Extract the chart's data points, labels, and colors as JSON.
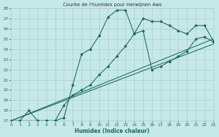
{
  "title": "Courbe de l'humidex pour Herwijnen Aws",
  "xlabel": "Humidex (Indice chaleur)",
  "bg_color": "#c5e8e8",
  "grid_color": "#b0cccc",
  "line_color": "#1a6b5a",
  "xlim": [
    0,
    23
  ],
  "ylim": [
    17,
    28
  ],
  "xtick_labels": [
    "0",
    "1",
    "2",
    "3",
    "4",
    "5",
    "6",
    "7",
    "8",
    "9",
    "10",
    "11",
    "12",
    "13",
    "14",
    "15",
    "16",
    "17",
    "18",
    "19",
    "20",
    "21",
    "22",
    "23"
  ],
  "ytick_labels": [
    "17",
    "18",
    "19",
    "20",
    "21",
    "22",
    "23",
    "24",
    "25",
    "26",
    "27",
    "28"
  ],
  "line1_x": [
    0,
    1,
    2,
    3,
    4,
    5,
    6,
    7,
    8,
    9,
    10,
    11,
    12,
    13,
    14,
    15,
    16,
    17,
    18,
    19,
    20,
    21,
    22,
    23
  ],
  "line1_y": [
    17,
    17,
    18,
    17,
    17,
    17,
    17.3,
    20.5,
    23.5,
    24.0,
    25.3,
    27.1,
    27.8,
    27.8,
    25.5,
    27.0,
    26.7,
    26.7,
    26.3,
    25.8,
    25.5,
    26.3,
    26.3,
    24.8
  ],
  "line2_x": [
    0,
    3,
    4,
    5,
    6,
    7,
    8,
    9,
    10,
    11,
    12,
    13,
    14,
    15,
    16,
    17,
    18,
    19,
    20,
    21,
    22,
    23
  ],
  "line2_y": [
    17.0,
    17.0,
    17.0,
    17.0,
    18.5,
    19.5,
    20.0,
    20.5,
    21.5,
    22.3,
    23.3,
    24.3,
    25.5,
    25.8,
    22.0,
    22.3,
    22.8,
    23.3,
    23.8,
    25.0,
    25.2,
    24.7
  ],
  "line3_x": [
    0,
    23
  ],
  "line3_y": [
    17.0,
    25.0
  ],
  "line4_x": [
    0,
    23
  ],
  "line4_y": [
    17.0,
    24.5
  ]
}
